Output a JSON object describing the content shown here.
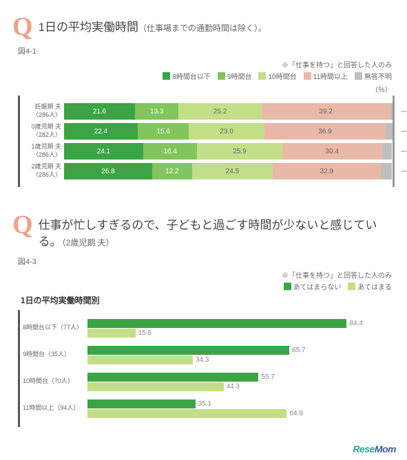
{
  "q_mark": "Q",
  "chart1": {
    "title_main": "1日の平均実働時間",
    "title_sub": "（仕事場までの通勤時間は除く）。",
    "fig_label": "図4-1",
    "note": "※「仕事を持つ」と回答した人のみ",
    "unit": "（％）",
    "legend": [
      {
        "label": "8時間台以下",
        "color": "#3ca445"
      },
      {
        "label": "9時間台",
        "color": "#82c55c"
      },
      {
        "label": "10時間台",
        "color": "#c2df87"
      },
      {
        "label": "11時間以上",
        "color": "#e9b8a8"
      },
      {
        "label": "無答不明",
        "color": "#bfbfbf"
      }
    ],
    "categories": [
      {
        "label_l1": "妊娠期 夫",
        "label_l2": "（286人）",
        "values": [
          21.6,
          13.3,
          25.2,
          39.2,
          0.7
        ]
      },
      {
        "label_l1": "0歳児期 夫",
        "label_l2": "（282人）",
        "values": [
          22.4,
          15.6,
          23.0,
          36.9,
          2.1
        ]
      },
      {
        "label_l1": "1歳児期 夫",
        "label_l2": "（286人）",
        "values": [
          24.1,
          16.4,
          25.9,
          30.4,
          3.1
        ]
      },
      {
        "label_l1": "2歳児期 夫",
        "label_l2": "（286人）",
        "values": [
          26.8,
          12.2,
          24.5,
          32.9,
          3.5
        ]
      }
    ],
    "max_scale": 100
  },
  "chart2": {
    "title_main": "仕事が忙しすぎるので、子どもと過ごす時間が少ないと感じている。",
    "title_sub": "（2歳児期 夫）",
    "fig_label": "図4-3",
    "note": "※「仕事を持つ」と回答した人のみ",
    "subtitle": "1日の平均実働時間別",
    "legend": [
      {
        "label": "あてはまらない",
        "color": "#3ca445"
      },
      {
        "label": "あてはまる",
        "color": "#c2df87"
      }
    ],
    "categories": [
      {
        "label": "8時間台以下（77人）",
        "values": [
          84.4,
          15.6
        ]
      },
      {
        "label": "9時間台（35人）",
        "values": [
          65.7,
          34.3
        ]
      },
      {
        "label": "10時間台（70人）",
        "values": [
          55.7,
          44.3
        ]
      },
      {
        "label": "11時間以上（94人）",
        "values": [
          35.1,
          64.9
        ]
      }
    ],
    "max_scale": 100
  },
  "logo": {
    "part1": "Rese",
    "part2": "Mom"
  }
}
